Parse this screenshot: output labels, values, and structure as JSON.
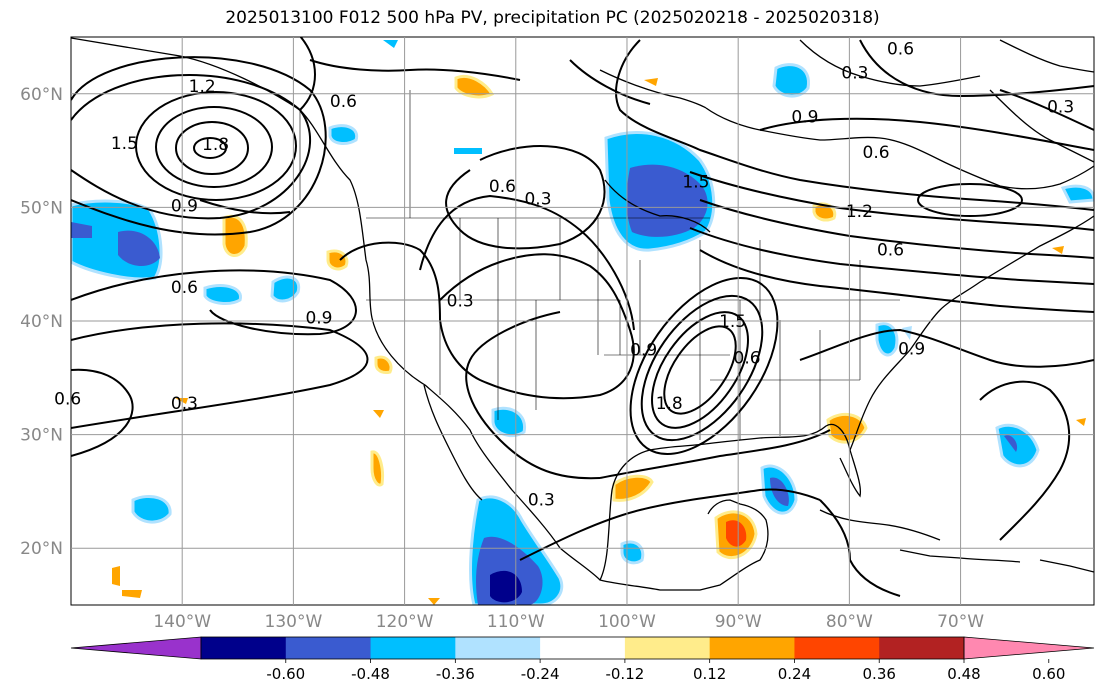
{
  "title": "2025013100 F012 500 hPa PV, precipitation PC (2025020218 - 2025020318)",
  "map": {
    "extent": {
      "lon": [
        -150,
        -58
      ],
      "lat": [
        15,
        65
      ]
    },
    "lat_ticks": [
      {
        "value": 60,
        "label": "60°N"
      },
      {
        "value": 50,
        "label": "50°N"
      },
      {
        "value": 40,
        "label": "40°N"
      },
      {
        "value": 30,
        "label": "30°N"
      },
      {
        "value": 20,
        "label": "20°N"
      }
    ],
    "lon_ticks": [
      {
        "value": -140,
        "label": "140°W"
      },
      {
        "value": -130,
        "label": "130°W"
      },
      {
        "value": -120,
        "label": "120°W"
      },
      {
        "value": -110,
        "label": "110°W"
      },
      {
        "value": -100,
        "label": "100°W"
      },
      {
        "value": -90,
        "label": "90°W"
      },
      {
        "value": -80,
        "label": "80°W"
      },
      {
        "value": -70,
        "label": "70°W"
      }
    ],
    "grid": true
  },
  "contour_labels": [
    {
      "text": "1.2",
      "lon": -138.2,
      "lat": 60.6
    },
    {
      "text": "0.6",
      "lon": -125.5,
      "lat": 59.3
    },
    {
      "text": "1.5",
      "lon": -145.2,
      "lat": 55.6
    },
    {
      "text": "1.8",
      "lon": -137.0,
      "lat": 55.5
    },
    {
      "text": "0.9",
      "lon": -139.8,
      "lat": 50.1
    },
    {
      "text": "0.3",
      "lon": -108.0,
      "lat": 50.7
    },
    {
      "text": "0.6",
      "lon": -111.2,
      "lat": 51.8
    },
    {
      "text": "0.6",
      "lon": -139.8,
      "lat": 42.9
    },
    {
      "text": "0.9",
      "lon": -127.7,
      "lat": 40.2
    },
    {
      "text": "0.3",
      "lon": -115.0,
      "lat": 41.7
    },
    {
      "text": "0.6",
      "lon": -150.3,
      "lat": 33.1
    },
    {
      "text": "0.3",
      "lon": -139.8,
      "lat": 32.7
    },
    {
      "text": "0.3",
      "lon": -107.7,
      "lat": 24.2
    },
    {
      "text": "0.9",
      "lon": -84.0,
      "lat": 57.9
    },
    {
      "text": "0.6",
      "lon": -77.6,
      "lat": 54.8
    },
    {
      "text": "1.5",
      "lon": -93.8,
      "lat": 52.2
    },
    {
      "text": "1.2",
      "lon": -79.1,
      "lat": 49.6
    },
    {
      "text": "0.6",
      "lon": -76.3,
      "lat": 46.2
    },
    {
      "text": "1.5",
      "lon": -90.5,
      "lat": 39.9
    },
    {
      "text": "0.9",
      "lon": -98.5,
      "lat": 37.4
    },
    {
      "text": "0.6",
      "lon": -89.2,
      "lat": 36.7
    },
    {
      "text": "1.8",
      "lon": -96.2,
      "lat": 32.7
    },
    {
      "text": "0.9",
      "lon": -74.4,
      "lat": 37.5
    },
    {
      "text": "0.6",
      "lon": -75.4,
      "lat": 63.9
    },
    {
      "text": "0.3",
      "lon": -79.5,
      "lat": 61.8
    },
    {
      "text": "0.3",
      "lon": -61.0,
      "lat": 58.8
    }
  ],
  "colorbar": {
    "ticks": [
      "-0.60",
      "-0.48",
      "-0.36",
      "-0.24",
      "-0.12",
      "0.12",
      "0.24",
      "0.36",
      "0.48",
      "0.60"
    ],
    "colors": [
      "#9932cc",
      "#00008b",
      "#3a5bd0",
      "#00bfff",
      "#b0e2ff",
      "#ffffff",
      "#ffec8b",
      "#ffa500",
      "#ff4500",
      "#b22222",
      "#ff88b0"
    ]
  }
}
